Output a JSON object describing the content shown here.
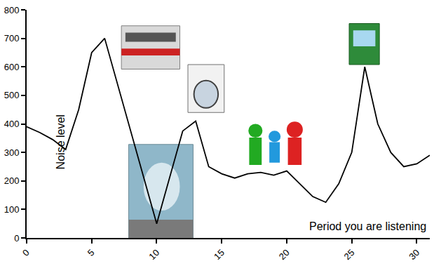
{
  "chart_data": {
    "type": "line",
    "x": [
      0,
      1,
      2,
      3,
      4,
      5,
      6,
      10,
      12,
      13,
      14,
      15,
      16,
      17,
      18,
      19,
      20,
      21,
      22,
      23,
      24,
      25,
      26,
      27,
      28,
      29,
      30,
      31
    ],
    "values": [
      390,
      370,
      345,
      310,
      450,
      650,
      700,
      50,
      375,
      410,
      250,
      225,
      210,
      225,
      230,
      220,
      235,
      190,
      145,
      125,
      190,
      300,
      600,
      400,
      300,
      250,
      260,
      290
    ],
    "color": "#000000",
    "xlim": [
      0,
      31
    ],
    "ylim": [
      0,
      800
    ],
    "xticks": [
      0,
      5,
      10,
      15,
      20,
      25,
      30
    ],
    "yticks": [
      0,
      100,
      200,
      300,
      400,
      500,
      600,
      700,
      800
    ],
    "x_label": "Period you are listening",
    "y_label": "Noise level",
    "grid": false
  }
}
